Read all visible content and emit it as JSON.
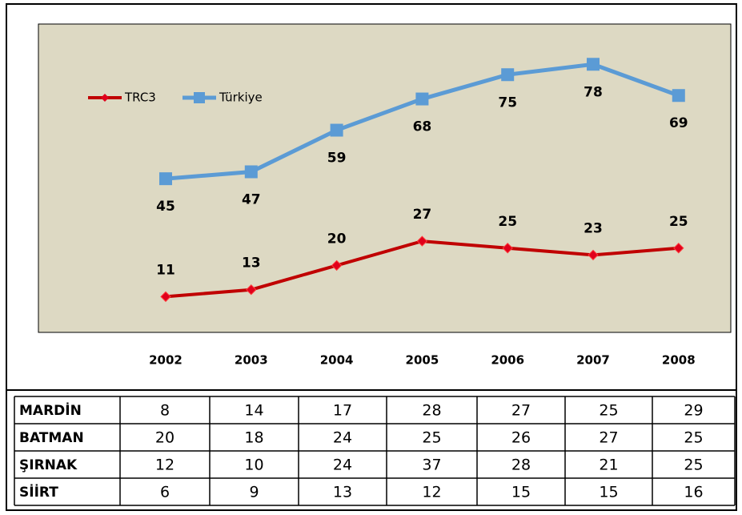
{
  "chart_data": {
    "type": "line",
    "categories": [
      "2002",
      "2003",
      "2004",
      "2005",
      "2006",
      "2007",
      "2008"
    ],
    "series": [
      {
        "name": "TRC3",
        "color": "#c00000",
        "values": [
          11,
          13,
          20,
          27,
          25,
          23,
          25
        ]
      },
      {
        "name": "Türkiye",
        "color": "#5b9bd5",
        "values": [
          45,
          47,
          59,
          68,
          75,
          78,
          69
        ]
      }
    ]
  },
  "table": {
    "rows": [
      [
        "MARDİN",
        "8",
        "14",
        "17",
        "28",
        "27",
        "25",
        "29"
      ],
      [
        "BATMAN",
        "20",
        "18",
        "24",
        "25",
        "26",
        "27",
        "25"
      ],
      [
        "ŞIRNAK",
        "12",
        "10",
        "24",
        "37",
        "28",
        "21",
        "25"
      ],
      [
        "SİİRT",
        "6",
        "9",
        "13",
        "12",
        "15",
        "15",
        "16"
      ]
    ]
  }
}
